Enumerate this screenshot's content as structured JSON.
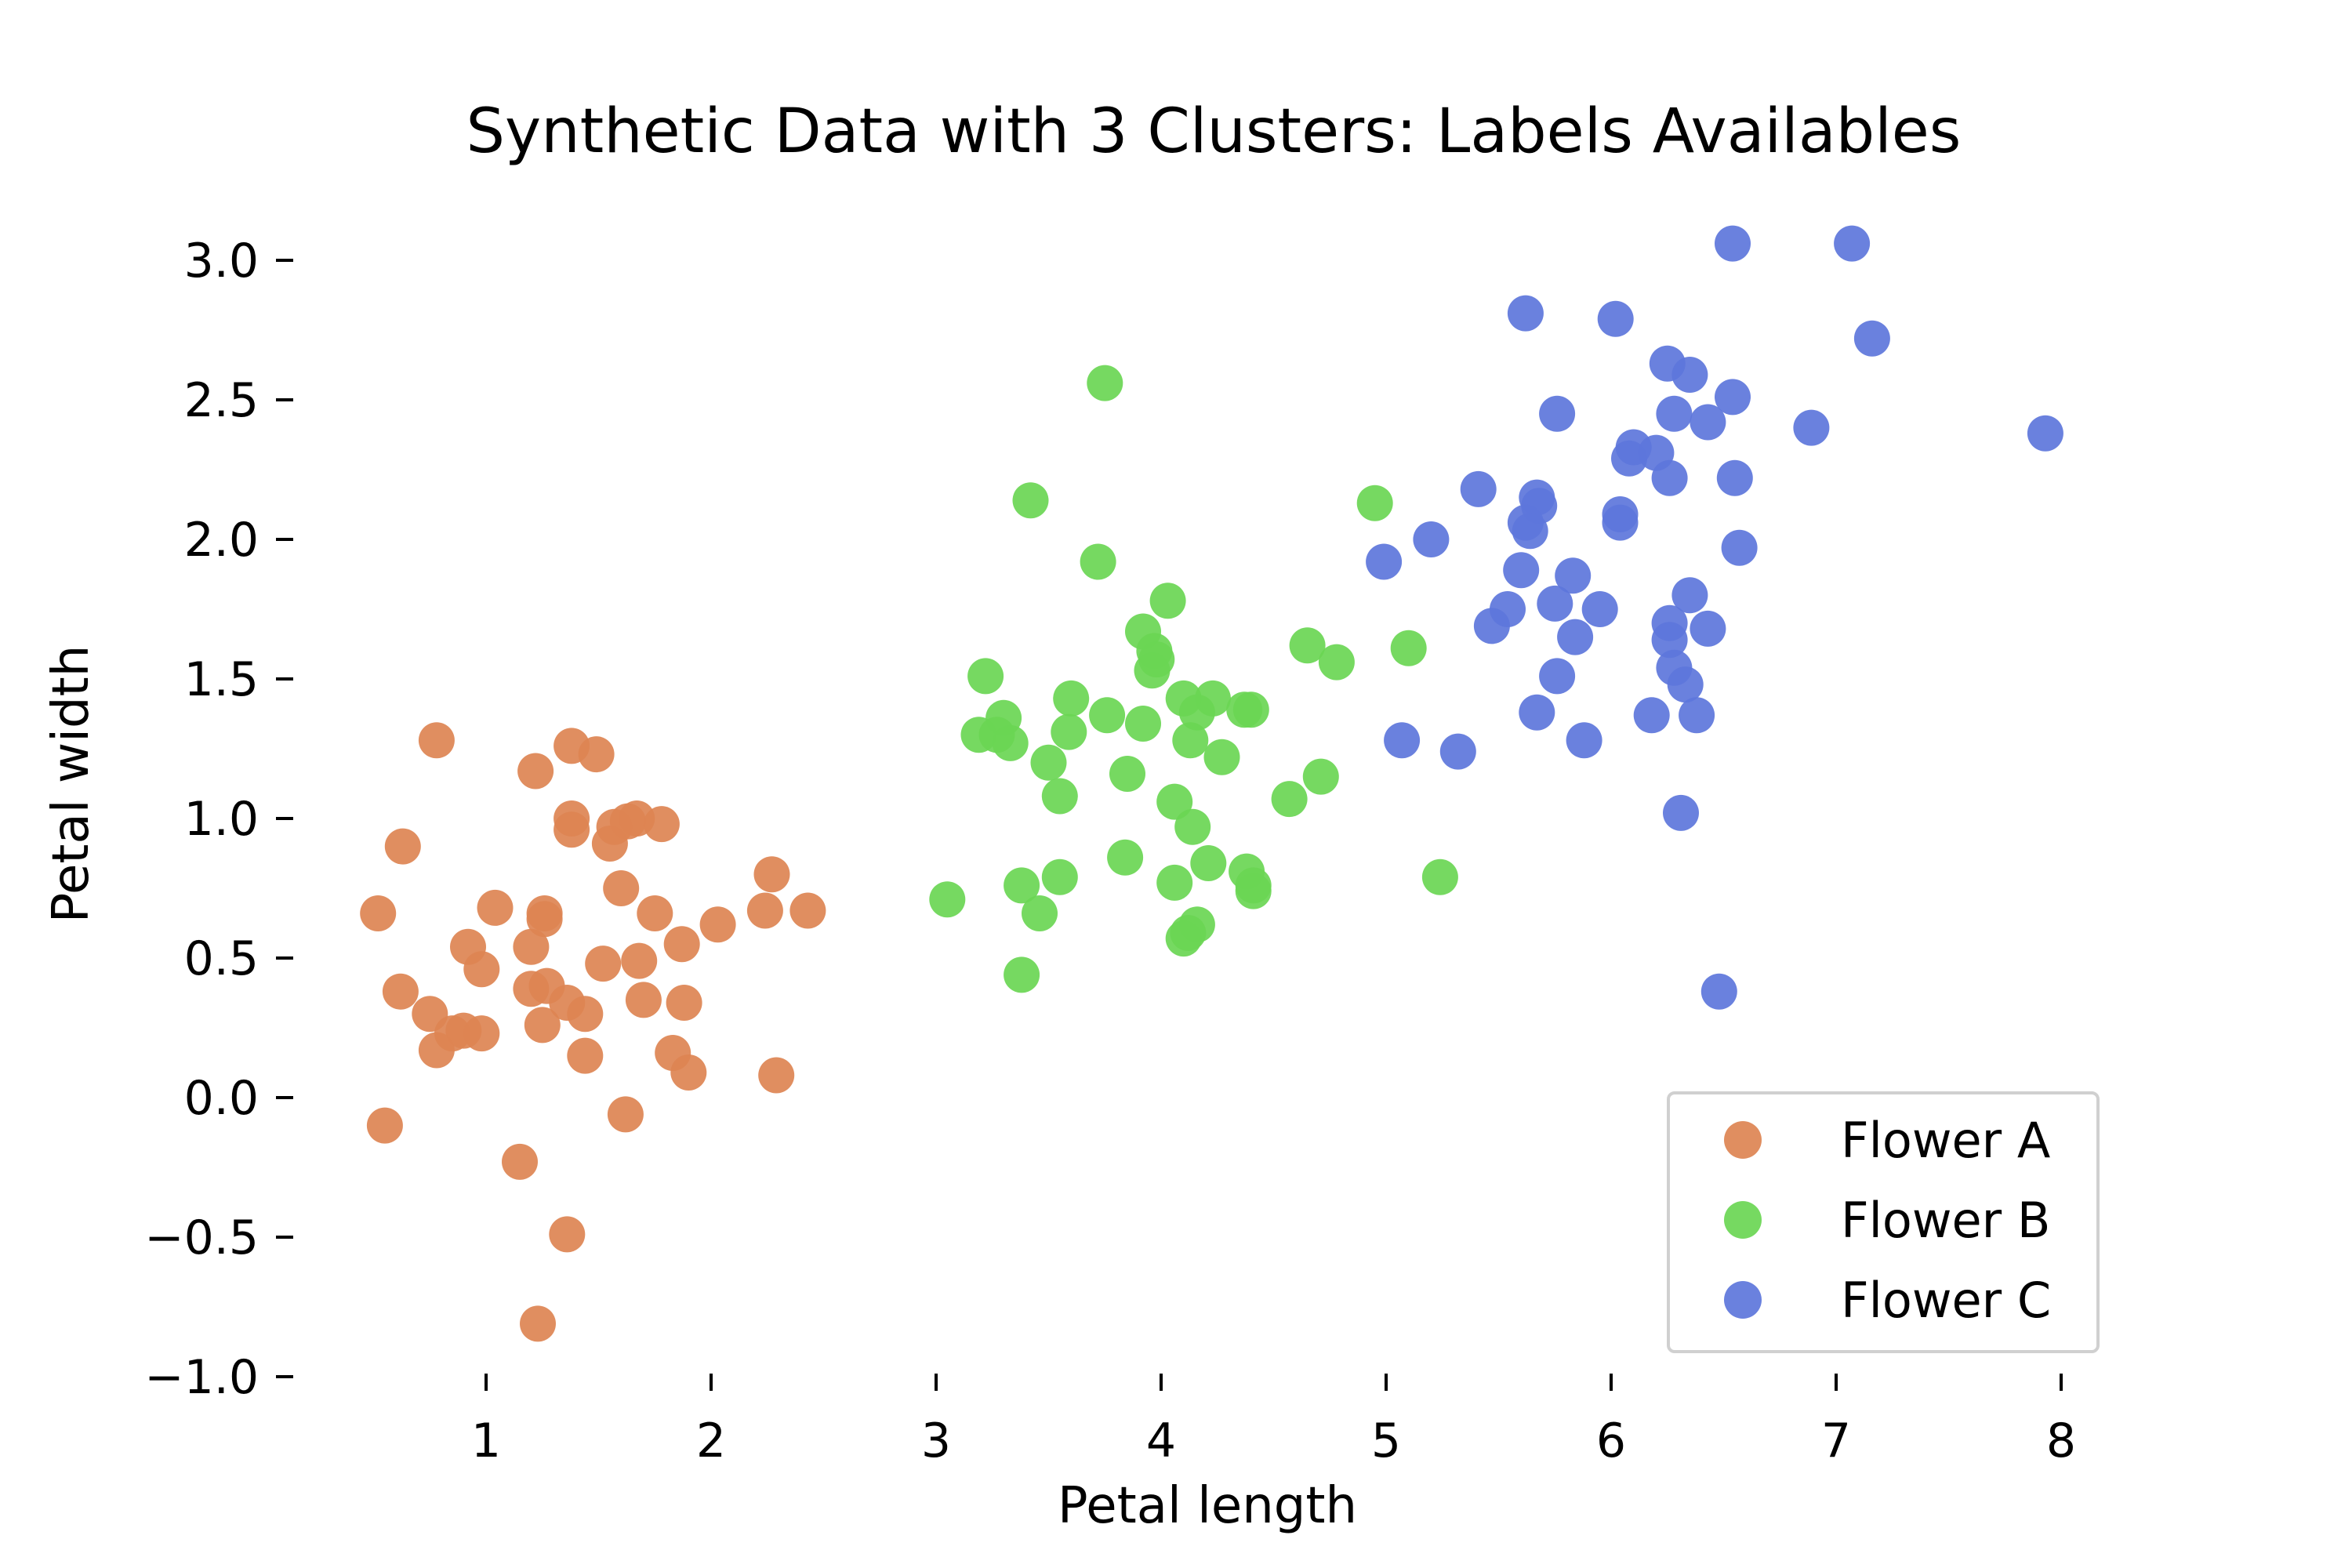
{
  "chart_data": {
    "type": "scatter",
    "title": "Synthetic Data with 3 Clusters: Labels Availables",
    "xlabel": "Petal length",
    "ylabel": "Petal width",
    "xlim": [
      0.3,
      8.0
    ],
    "ylim": [
      -1.0,
      3.2
    ],
    "xticks": [
      1,
      2,
      3,
      4,
      5,
      6,
      7,
      8
    ],
    "xtick_labels": [
      "1",
      "2",
      "3",
      "4",
      "5",
      "6",
      "7",
      "8"
    ],
    "yticks": [
      3.0,
      2.5,
      2.0,
      1.5,
      1.0,
      0.5,
      0.0,
      -0.5,
      -1.0
    ],
    "ytick_labels": [
      "3.0",
      "2.5",
      "2.0",
      "1.5",
      "1.0",
      "0.5",
      "0.0",
      "−0.5",
      "−1.0"
    ],
    "grid": false,
    "legend_position": "bottom-right",
    "series": [
      {
        "name": "Flower A",
        "color": "#dd8452",
        "points": [
          [
            0.78,
            1.28
          ],
          [
            1.22,
            1.17
          ],
          [
            1.38,
            1.26
          ],
          [
            1.49,
            1.23
          ],
          [
            0.63,
            0.9
          ],
          [
            1.38,
            1.0
          ],
          [
            1.38,
            0.96
          ],
          [
            1.55,
            0.91
          ],
          [
            1.57,
            0.97
          ],
          [
            1.63,
            0.99
          ],
          [
            1.67,
            1.0
          ],
          [
            1.78,
            0.98
          ],
          [
            1.6,
            0.75
          ],
          [
            1.75,
            0.66
          ],
          [
            1.04,
            0.68
          ],
          [
            0.52,
            0.66
          ],
          [
            1.26,
            0.66
          ],
          [
            1.26,
            0.64
          ],
          [
            2.27,
            0.8
          ],
          [
            2.24,
            0.67
          ],
          [
            2.43,
            0.67
          ],
          [
            2.03,
            0.62
          ],
          [
            1.2,
            0.54
          ],
          [
            0.92,
            0.54
          ],
          [
            1.87,
            0.55
          ],
          [
            1.52,
            0.48
          ],
          [
            1.68,
            0.49
          ],
          [
            0.98,
            0.46
          ],
          [
            0.62,
            0.38
          ],
          [
            1.2,
            0.39
          ],
          [
            1.27,
            0.4
          ],
          [
            1.36,
            0.34
          ],
          [
            1.44,
            0.3
          ],
          [
            0.75,
            0.3
          ],
          [
            0.85,
            0.23
          ],
          [
            0.9,
            0.24
          ],
          [
            0.98,
            0.23
          ],
          [
            1.25,
            0.26
          ],
          [
            1.7,
            0.35
          ],
          [
            1.88,
            0.34
          ],
          [
            0.78,
            0.17
          ],
          [
            1.44,
            0.15
          ],
          [
            1.83,
            0.16
          ],
          [
            1.9,
            0.09
          ],
          [
            2.29,
            0.08
          ],
          [
            0.55,
            -0.1
          ],
          [
            1.62,
            -0.06
          ],
          [
            1.15,
            -0.23
          ],
          [
            1.36,
            -0.49
          ],
          [
            1.23,
            -0.81
          ]
        ]
      },
      {
        "name": "Flower B",
        "color": "#6ad654",
        "points": [
          [
            3.75,
            2.56
          ],
          [
            3.42,
            2.14
          ],
          [
            3.72,
            1.92
          ],
          [
            4.03,
            1.78
          ],
          [
            3.92,
            1.67
          ],
          [
            3.97,
            1.6
          ],
          [
            3.98,
            1.57
          ],
          [
            3.96,
            1.53
          ],
          [
            3.22,
            1.51
          ],
          [
            3.6,
            1.43
          ],
          [
            3.76,
            1.37
          ],
          [
            3.3,
            1.36
          ],
          [
            3.19,
            1.3
          ],
          [
            3.27,
            1.3
          ],
          [
            3.33,
            1.27
          ],
          [
            3.59,
            1.31
          ],
          [
            3.92,
            1.34
          ],
          [
            4.1,
            1.43
          ],
          [
            4.23,
            1.43
          ],
          [
            4.4,
            1.39
          ],
          [
            4.16,
            1.38
          ],
          [
            4.13,
            1.28
          ],
          [
            4.27,
            1.22
          ],
          [
            3.5,
            1.2
          ],
          [
            3.55,
            1.08
          ],
          [
            3.85,
            1.16
          ],
          [
            4.06,
            1.06
          ],
          [
            4.14,
            0.97
          ],
          [
            3.84,
            0.86
          ],
          [
            4.21,
            0.84
          ],
          [
            3.55,
            0.79
          ],
          [
            3.38,
            0.76
          ],
          [
            4.06,
            0.77
          ],
          [
            4.38,
            0.81
          ],
          [
            4.41,
            0.76
          ],
          [
            4.41,
            0.74
          ],
          [
            3.46,
            0.66
          ],
          [
            4.16,
            0.62
          ],
          [
            4.12,
            0.59
          ],
          [
            4.1,
            0.57
          ],
          [
            3.05,
            0.71
          ],
          [
            3.38,
            0.44
          ],
          [
            4.65,
            1.62
          ],
          [
            4.78,
            1.56
          ],
          [
            4.57,
            1.07
          ],
          [
            4.71,
            1.15
          ],
          [
            4.95,
            2.13
          ],
          [
            5.1,
            1.61
          ],
          [
            5.24,
            0.79
          ],
          [
            4.37,
            1.39
          ]
        ]
      },
      {
        "name": "Flower C",
        "color": "#5d76db",
        "points": [
          [
            6.54,
            3.06
          ],
          [
            7.07,
            3.06
          ],
          [
            5.62,
            2.81
          ],
          [
            6.02,
            2.79
          ],
          [
            7.16,
            2.72
          ],
          [
            6.25,
            2.63
          ],
          [
            6.35,
            2.59
          ],
          [
            6.54,
            2.51
          ],
          [
            5.76,
            2.45
          ],
          [
            6.28,
            2.45
          ],
          [
            6.43,
            2.42
          ],
          [
            6.89,
            2.4
          ],
          [
            7.93,
            2.38
          ],
          [
            6.1,
            2.33
          ],
          [
            6.08,
            2.29
          ],
          [
            6.2,
            2.31
          ],
          [
            6.26,
            2.22
          ],
          [
            6.55,
            2.22
          ],
          [
            5.41,
            2.18
          ],
          [
            5.67,
            2.15
          ],
          [
            5.68,
            2.12
          ],
          [
            6.04,
            2.09
          ],
          [
            6.04,
            2.06
          ],
          [
            5.62,
            2.06
          ],
          [
            5.64,
            2.03
          ],
          [
            5.2,
            2.0
          ],
          [
            6.57,
            1.97
          ],
          [
            4.99,
            1.92
          ],
          [
            5.6,
            1.89
          ],
          [
            5.83,
            1.87
          ],
          [
            6.35,
            1.8
          ],
          [
            5.75,
            1.77
          ],
          [
            5.54,
            1.75
          ],
          [
            5.95,
            1.75
          ],
          [
            5.47,
            1.69
          ],
          [
            6.26,
            1.7
          ],
          [
            6.43,
            1.68
          ],
          [
            5.84,
            1.65
          ],
          [
            6.26,
            1.64
          ],
          [
            5.76,
            1.51
          ],
          [
            6.28,
            1.54
          ],
          [
            6.33,
            1.48
          ],
          [
            6.18,
            1.37
          ],
          [
            6.38,
            1.37
          ],
          [
            5.67,
            1.38
          ],
          [
            5.07,
            1.28
          ],
          [
            5.32,
            1.24
          ],
          [
            5.88,
            1.28
          ],
          [
            6.31,
            1.02
          ],
          [
            6.48,
            0.38
          ]
        ]
      }
    ]
  }
}
